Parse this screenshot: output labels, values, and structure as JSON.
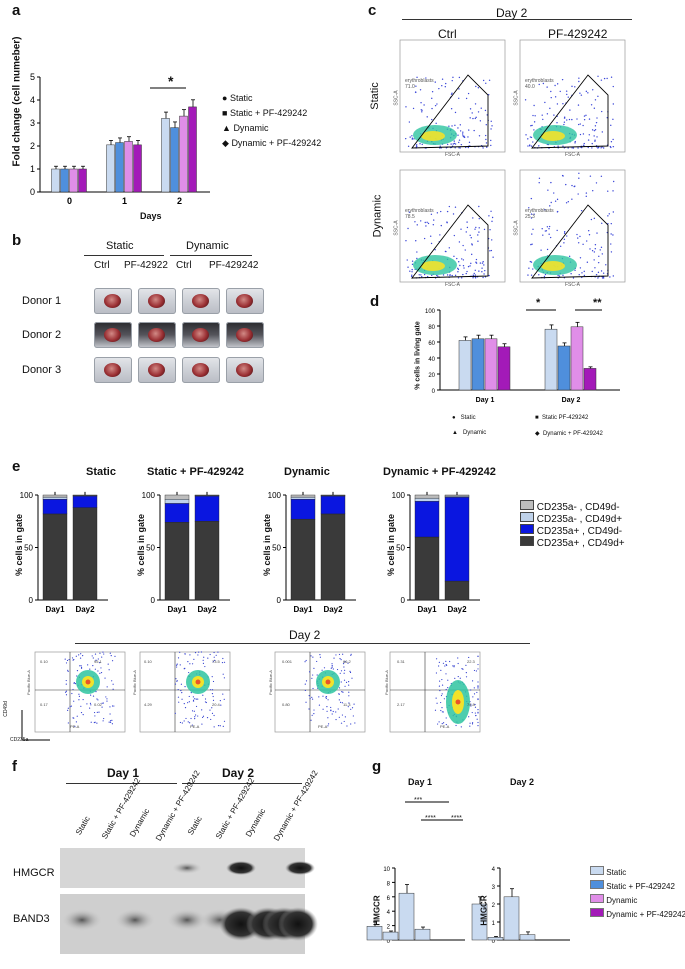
{
  "panel_labels": {
    "a": "a",
    "b": "b",
    "c": "c",
    "d": "d",
    "e": "e",
    "f": "f",
    "g": "g"
  },
  "panel_a": {
    "ylabel": "Fold change (cell numeber)",
    "xlabel": "Days",
    "significance": "*",
    "legend": [
      "Static",
      "Static + PF-429242",
      "Dynamic",
      "Dynamic + PF-429242"
    ]
  },
  "panel_b": {
    "groups": [
      "Static",
      "Dynamic"
    ],
    "conditions": [
      "Ctrl",
      "PF-42922",
      "Ctrl",
      "PF-429242"
    ],
    "donors": [
      "Donor 1",
      "Donor 2",
      "Donor 3"
    ]
  },
  "panel_c": {
    "title": "Day 2",
    "columns": [
      "Ctrl",
      "PF-429242"
    ],
    "rows": [
      "Static",
      "Dynamic"
    ],
    "gate_label": "erythroblasts",
    "gate_values": [
      "71.0",
      "40.0",
      "78.5",
      "25.3"
    ],
    "x_axis": "FSC-A",
    "y_axis": "SSC-A"
  },
  "panel_d": {
    "ylabel": "% cells in living gate",
    "significance": [
      "*",
      "**"
    ],
    "legend": [
      "Static",
      "Static PF-429242",
      "Dynamic",
      "Dynamic + PF-429242"
    ]
  },
  "panel_e": {
    "titles": [
      "Static",
      "Static + PF-429242",
      "Dynamic",
      "Dynamic + PF-429242"
    ],
    "ylabel": "% cells in gate",
    "legend": [
      "CD235a- , CD49d-",
      "CD235a- , CD49d+",
      "CD235a+ , CD49d-",
      "CD235a+ , CD49d+"
    ],
    "day2_title": "Day 2",
    "quadrants": [
      {
        "q1": "0.10",
        "q2": "95.1",
        "q3": "0.17",
        "q4": "0.02"
      },
      {
        "q1": "0.10",
        "q2": "73.5",
        "q3": "4.29",
        "q4": "20.4"
      },
      {
        "q1": "0.001",
        "q2": "66.2",
        "q3": "0.80",
        "q4": "11.3"
      },
      {
        "q1": "0.31",
        "q2": "22.3",
        "q3": "2.17",
        "q4": "74.8"
      }
    ],
    "flow_x": "PE-A",
    "flow_y": "Pacific Blue-A",
    "axis_x": "CD235a",
    "axis_y": "CD49d"
  },
  "panel_f": {
    "days": [
      "Day 1",
      "Day 2"
    ],
    "lanes": [
      "Static",
      "Static + PF-429242",
      "Dynamic",
      "Dynamic + PF-429242",
      "Static",
      "Static + PF-429242",
      "Dynamic",
      "Dynamic + PF-429242"
    ],
    "proteins": [
      "HMGCR",
      "BAND3"
    ]
  },
  "panel_g": {
    "legend": [
      "Static",
      "Static + PF-429242",
      "Dynamic",
      "Dynamic + PF-429242"
    ],
    "ylabel": "HMGCR",
    "sig": [
      "***",
      "****",
      "****"
    ]
  },
  "colors": {
    "static": "#c9daf0",
    "static_pf": "#4f8fdc",
    "dynamic": "#e08ee8",
    "dynamic_pf": "#a31ab8"
  },
  "chart_data": [
    {
      "id": "a",
      "type": "bar",
      "title": "",
      "xlabel": "Days",
      "ylabel": "Fold change (cell numeber)",
      "categories": [
        "0",
        "1",
        "2"
      ],
      "ylim": [
        0,
        5
      ],
      "yticks": [
        "0",
        "1",
        "2",
        "3",
        "4",
        "5"
      ],
      "series": [
        {
          "name": "Static",
          "values": [
            1.0,
            2.05,
            3.2
          ]
        },
        {
          "name": "Static + PF-429242",
          "values": [
            1.0,
            2.15,
            2.8
          ]
        },
        {
          "name": "Dynamic",
          "values": [
            1.0,
            2.2,
            3.3
          ]
        },
        {
          "name": "Dynamic + PF-429242",
          "values": [
            1.0,
            2.05,
            3.7
          ]
        }
      ]
    },
    {
      "id": "d",
      "type": "bar",
      "title": "",
      "ylabel": "% cells in living gate",
      "categories": [
        "Day 1",
        "Day 2"
      ],
      "ylim": [
        0,
        100
      ],
      "yticks": [
        "0",
        "20",
        "40",
        "60",
        "80",
        "100"
      ],
      "series": [
        {
          "name": "Static",
          "values": [
            62,
            76
          ]
        },
        {
          "name": "Static PF-429242",
          "values": [
            64,
            55
          ]
        },
        {
          "name": "Dynamic",
          "values": [
            64,
            79
          ]
        },
        {
          "name": "Dynamic + PF-429242",
          "values": [
            54,
            27
          ]
        }
      ]
    },
    {
      "id": "e1",
      "type": "bar",
      "title": "Static",
      "ylabel": "% cells in gate",
      "categories": [
        "Day1",
        "Day2"
      ],
      "ylim": [
        0,
        100
      ],
      "yticks": [
        "0",
        "50",
        "100"
      ],
      "series": [
        {
          "name": "CD235a+ , CD49d+",
          "values": [
            82,
            88
          ]
        },
        {
          "name": "CD235a+ , CD49d-",
          "values": [
            14,
            11
          ]
        },
        {
          "name": "CD235a- , CD49d+",
          "values": [
            2,
            0.5
          ]
        },
        {
          "name": "CD235a- , CD49d-",
          "values": [
            2,
            0.5
          ]
        }
      ]
    },
    {
      "id": "e2",
      "type": "bar",
      "title": "Static + PF-429242",
      "ylabel": "% cells in gate",
      "categories": [
        "Day1",
        "Day2"
      ],
      "ylim": [
        0,
        100
      ],
      "yticks": [
        "0",
        "50",
        "100"
      ],
      "series": [
        {
          "name": "CD235a+ , CD49d+",
          "values": [
            74,
            75
          ]
        },
        {
          "name": "CD235a+ , CD49d-",
          "values": [
            18,
            24
          ]
        },
        {
          "name": "CD235a- , CD49d+",
          "values": [
            4,
            0.5
          ]
        },
        {
          "name": "CD235a- , CD49d-",
          "values": [
            4,
            0.5
          ]
        }
      ]
    },
    {
      "id": "e3",
      "type": "bar",
      "title": "Dynamic",
      "ylabel": "% cells in gate",
      "categories": [
        "Day1",
        "Day2"
      ],
      "ylim": [
        0,
        100
      ],
      "yticks": [
        "0",
        "50",
        "100"
      ],
      "series": [
        {
          "name": "CD235a+ , CD49d+",
          "values": [
            77,
            82
          ]
        },
        {
          "name": "CD235a+ , CD49d-",
          "values": [
            19,
            17
          ]
        },
        {
          "name": "CD235a- , CD49d+",
          "values": [
            2,
            0.5
          ]
        },
        {
          "name": "CD235a- , CD49d-",
          "values": [
            2,
            0.5
          ]
        }
      ]
    },
    {
      "id": "e4",
      "type": "bar",
      "title": "Dynamic + PF-429242",
      "ylabel": "% cells in gate",
      "categories": [
        "Day1",
        "Day2"
      ],
      "ylim": [
        0,
        100
      ],
      "yticks": [
        "0",
        "50",
        "100"
      ],
      "series": [
        {
          "name": "CD235a+ , CD49d+",
          "values": [
            60,
            18
          ]
        },
        {
          "name": "CD235a+ , CD49d-",
          "values": [
            34,
            80
          ]
        },
        {
          "name": "CD235a- , CD49d+",
          "values": [
            3,
            1
          ]
        },
        {
          "name": "CD235a- , CD49d-",
          "values": [
            3,
            1
          ]
        }
      ]
    },
    {
      "id": "g1",
      "type": "bar",
      "title": "Day 1",
      "ylabel": "HMGCR",
      "categories": [
        "Static",
        "Static + PF-429242",
        "Dynamic",
        "Dynamic + PF-429242"
      ],
      "ylim": [
        0,
        10
      ],
      "yticks": [
        "0",
        "2",
        "4",
        "6",
        "8",
        "10"
      ],
      "values": [
        1.9,
        1.1,
        6.5,
        1.5
      ],
      "errors": [
        0.6,
        0.15,
        1.2,
        0.3
      ]
    },
    {
      "id": "g2",
      "type": "bar",
      "title": "Day 2",
      "ylabel": "HMGCR",
      "categories": [
        "Static",
        "Static + PF-429242",
        "Dynamic",
        "Dynamic + PF-429242"
      ],
      "ylim": [
        0,
        4
      ],
      "yticks": [
        "0",
        "1",
        "2",
        "3",
        "4"
      ],
      "values": [
        2.0,
        0.15,
        2.4,
        0.3
      ],
      "errors": [
        0.4,
        0.05,
        0.45,
        0.15
      ]
    }
  ]
}
